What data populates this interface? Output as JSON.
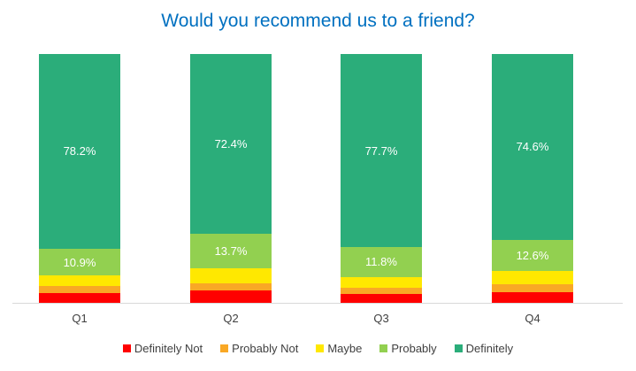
{
  "chart_data": {
    "type": "bar",
    "stacked": true,
    "normalized": true,
    "title": "Would you recommend us to a friend?",
    "xlabel": "",
    "ylabel": "",
    "categories": [
      "Q1",
      "Q2",
      "Q3",
      "Q4"
    ],
    "series": [
      {
        "name": "Definitely Not",
        "color": "#FF0000",
        "values": [
          3.8,
          5.1,
          3.7,
          4.3
        ]
      },
      {
        "name": "Probably Not",
        "color": "#F9A825",
        "values": [
          2.8,
          2.8,
          2.5,
          3.2
        ]
      },
      {
        "name": "Maybe",
        "color": "#FFE800",
        "values": [
          4.3,
          6.0,
          4.3,
          5.3
        ]
      },
      {
        "name": "Probably",
        "color": "#92D050",
        "values": [
          10.9,
          13.7,
          11.8,
          12.6
        ],
        "labels": [
          "10.9%",
          "13.7%",
          "11.8%",
          "12.6%"
        ]
      },
      {
        "name": "Definitely",
        "color": "#2BAD7A",
        "values": [
          78.2,
          72.4,
          77.7,
          74.6
        ],
        "labels": [
          "78.2%",
          "72.4%",
          "77.7%",
          "74.6%"
        ]
      }
    ],
    "ylim": [
      0,
      100
    ],
    "grid": false,
    "legend_position": "bottom"
  }
}
